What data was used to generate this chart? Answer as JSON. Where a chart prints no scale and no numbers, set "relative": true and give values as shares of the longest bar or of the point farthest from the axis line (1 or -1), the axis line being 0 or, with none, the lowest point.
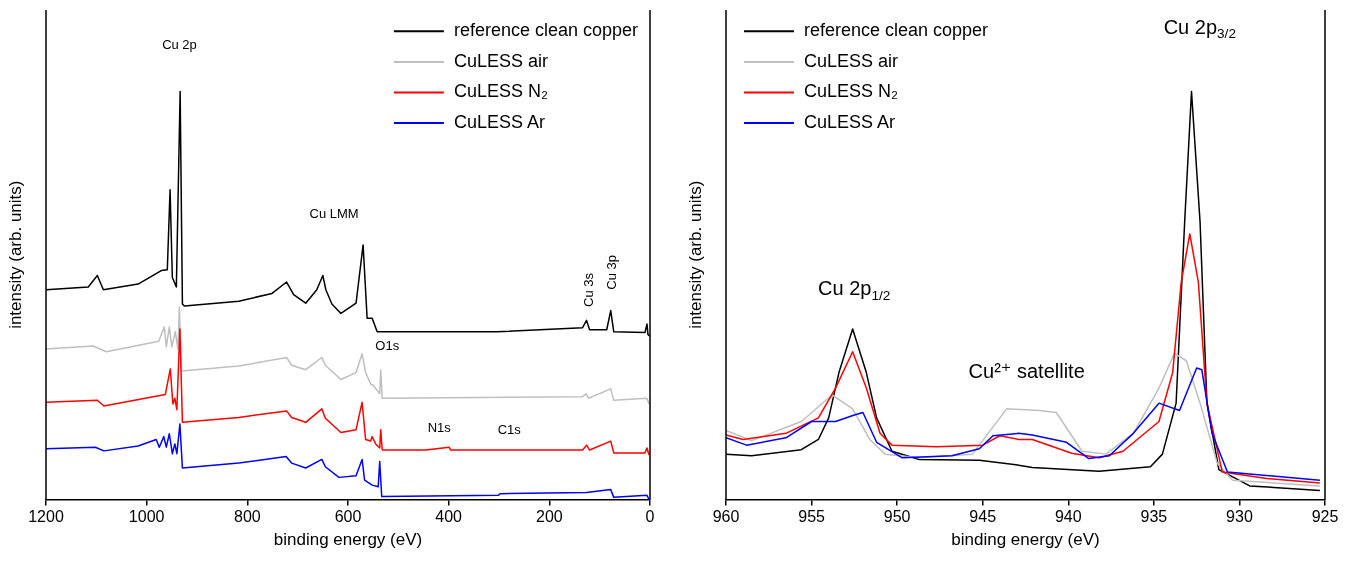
{
  "chart_data": [
    {
      "type": "line",
      "relative": true,
      "xlabel": "binding energy (eV)",
      "ylabel": "intensity (arb. units)",
      "xlim": [
        1200,
        0
      ],
      "xticks": [
        1200,
        1000,
        800,
        600,
        400,
        200,
        0
      ],
      "legend": "top right",
      "series": [
        {
          "name": "reference clean copper",
          "color": "#000000",
          "x": [
            1200,
            1116,
            1098,
            1086,
            1017,
            971,
            959,
            953.5,
            949,
            941,
            933.5,
            929,
            925,
            817,
            751,
            722,
            708,
            684,
            662,
            650,
            644,
            632,
            614,
            584,
            570,
            562,
            552,
            542,
            305,
            134,
            126,
            120,
            86,
            78,
            72,
            10,
            6,
            4,
            0
          ],
          "values": [
            0.514,
            0.521,
            0.549,
            0.514,
            0.528,
            0.561,
            0.563,
            0.759,
            0.544,
            0.521,
            1.0,
            0.479,
            0.474,
            0.486,
            0.505,
            0.533,
            0.502,
            0.481,
            0.514,
            0.549,
            0.514,
            0.479,
            0.456,
            0.481,
            0.624,
            0.444,
            0.444,
            0.411,
            0.411,
            0.421,
            0.439,
            0.416,
            0.416,
            0.463,
            0.411,
            0.409,
            0.43,
            0.404,
            0.4
          ]
        },
        {
          "name": "CuLESS air",
          "color": "#bfbfbf",
          "x": [
            1200,
            1106,
            1080,
            976,
            965,
            961,
            955,
            950,
            943,
            938,
            935,
            931,
            817,
            722,
            712,
            684,
            652,
            645,
            614,
            584,
            572,
            565,
            555,
            550,
            537,
            535,
            532,
            134,
            127,
            122,
            78,
            72,
            6,
            2
          ],
          "values": [
            0.369,
            0.376,
            0.362,
            0.388,
            0.423,
            0.374,
            0.423,
            0.374,
            0.411,
            0.369,
            0.472,
            0.315,
            0.327,
            0.348,
            0.329,
            0.318,
            0.348,
            0.329,
            0.294,
            0.311,
            0.357,
            0.311,
            0.283,
            0.28,
            0.259,
            0.318,
            0.248,
            0.252,
            0.259,
            0.248,
            0.271,
            0.243,
            0.248,
            0.234
          ]
        },
        {
          "name": "CuLESS N₂",
          "color": "#ff0000",
          "x": [
            1200,
            1098,
            1085,
            963,
            953,
            948,
            944,
            940,
            934,
            929,
            817,
            722,
            712,
            684,
            652,
            645,
            614,
            584,
            572,
            565,
            555,
            552,
            545,
            537,
            535,
            532,
            446,
            399,
            396,
            134,
            126,
            120,
            78,
            72,
            10,
            6,
            2
          ],
          "values": [
            0.238,
            0.243,
            0.229,
            0.257,
            0.32,
            0.234,
            0.248,
            0.22,
            0.418,
            0.189,
            0.201,
            0.217,
            0.201,
            0.189,
            0.222,
            0.199,
            0.164,
            0.171,
            0.238,
            0.147,
            0.143,
            0.154,
            0.136,
            0.126,
            0.171,
            0.121,
            0.121,
            0.128,
            0.121,
            0.121,
            0.133,
            0.121,
            0.143,
            0.114,
            0.114,
            0.126,
            0.109
          ]
        },
        {
          "name": "CuLESS Ar",
          "color": "#0000ff",
          "x": [
            1200,
            1102,
            1085,
            1017,
            981,
            975,
            966,
            961,
            955,
            949,
            944,
            940,
            934,
            929,
            817,
            723,
            712,
            684,
            652,
            645,
            618,
            584,
            572,
            567,
            552,
            540,
            537,
            533,
            301,
            298,
            126,
            78,
            72,
            6,
            2
          ],
          "values": [
            0.124,
            0.128,
            0.119,
            0.131,
            0.147,
            0.128,
            0.154,
            0.128,
            0.161,
            0.112,
            0.136,
            0.112,
            0.185,
            0.077,
            0.089,
            0.105,
            0.089,
            0.077,
            0.098,
            0.08,
            0.054,
            0.058,
            0.098,
            0.047,
            0.035,
            0.031,
            0.093,
            0.007,
            0.01,
            0.014,
            0.017,
            0.024,
            0.005,
            0.01,
            0.0
          ]
        }
      ],
      "annotations": [
        "Cu 2p",
        "Cu LMM",
        "O1s",
        "N1s",
        "C1s",
        "Cu 3s",
        "Cu 3p"
      ]
    },
    {
      "type": "line",
      "relative": true,
      "xlabel": "binding energy (eV)",
      "ylabel": "intensity (arb. units)",
      "xlim": [
        960,
        925
      ],
      "xticks": [
        960,
        955,
        950,
        945,
        940,
        935,
        930,
        925
      ],
      "legend": "top left",
      "series": [
        {
          "name": "reference clean copper",
          "color": "#000000",
          "x": [
            960,
            958.5,
            955.6,
            954.6,
            954.0,
            953.4,
            952.6,
            951.8,
            951.2,
            950.3,
            948.7,
            945.2,
            942.9,
            942.1,
            938.2,
            935.2,
            934.5,
            933.7,
            933.2,
            932.8,
            932.3,
            931.9,
            931.2,
            929.4,
            925.3
          ],
          "values": [
            0.111,
            0.107,
            0.122,
            0.147,
            0.2,
            0.311,
            0.418,
            0.311,
            0.2,
            0.118,
            0.098,
            0.096,
            0.084,
            0.078,
            0.069,
            0.08,
            0.111,
            0.236,
            0.68,
            1.0,
            0.68,
            0.236,
            0.073,
            0.033,
            0.022
          ]
        },
        {
          "name": "CuLESS air",
          "color": "#bfbfbf",
          "x": [
            960,
            958.5,
            955.6,
            953.8,
            952.6,
            951.6,
            950.7,
            948.7,
            945.6,
            943.6,
            941.7,
            940.7,
            939.2,
            937.8,
            936.2,
            934.7,
            933.8,
            933.1,
            932.3,
            931.3,
            930.4,
            925.3
          ],
          "values": [
            0.169,
            0.144,
            0.191,
            0.256,
            0.222,
            0.147,
            0.111,
            0.102,
            0.111,
            0.222,
            0.218,
            0.213,
            0.118,
            0.111,
            0.162,
            0.273,
            0.358,
            0.34,
            0.236,
            0.089,
            0.047,
            0.033
          ]
        },
        {
          "name": "CuLESS N₂",
          "color": "#ff0000",
          "x": [
            960,
            959,
            956.5,
            954.6,
            953.6,
            952.6,
            951.8,
            951.0,
            950.3,
            947.7,
            945.0,
            944.0,
            942.9,
            942.1,
            939.8,
            938.2,
            936.8,
            934.7,
            933.9,
            933.4,
            932.9,
            932.4,
            931.9,
            931.0,
            928.4,
            925.3
          ],
          "values": [
            0.158,
            0.147,
            0.162,
            0.2,
            0.273,
            0.362,
            0.273,
            0.162,
            0.133,
            0.129,
            0.133,
            0.156,
            0.147,
            0.147,
            0.113,
            0.102,
            0.118,
            0.191,
            0.311,
            0.533,
            0.651,
            0.533,
            0.236,
            0.067,
            0.051,
            0.04
          ]
        },
        {
          "name": "CuLESS Ar",
          "color": "#0000ff",
          "x": [
            960,
            958.8,
            956.5,
            955.0,
            953.6,
            952.5,
            952.0,
            951.2,
            949.7,
            946.8,
            945.2,
            944.4,
            942.9,
            942.1,
            940.1,
            938.8,
            937.6,
            936.2,
            934.7,
            933.5,
            932.5,
            932.2,
            931.6,
            930.7,
            925.3
          ],
          "values": [
            0.151,
            0.133,
            0.151,
            0.191,
            0.191,
            0.207,
            0.213,
            0.14,
            0.102,
            0.107,
            0.124,
            0.156,
            0.162,
            0.158,
            0.14,
            0.1,
            0.107,
            0.162,
            0.236,
            0.218,
            0.322,
            0.318,
            0.162,
            0.067,
            0.047
          ]
        }
      ],
      "annotations": [
        "Cu 2p$_{1/2}$",
        "Cu²⁺ satellite",
        "Cu 2p$_{3/2}$"
      ]
    }
  ]
}
